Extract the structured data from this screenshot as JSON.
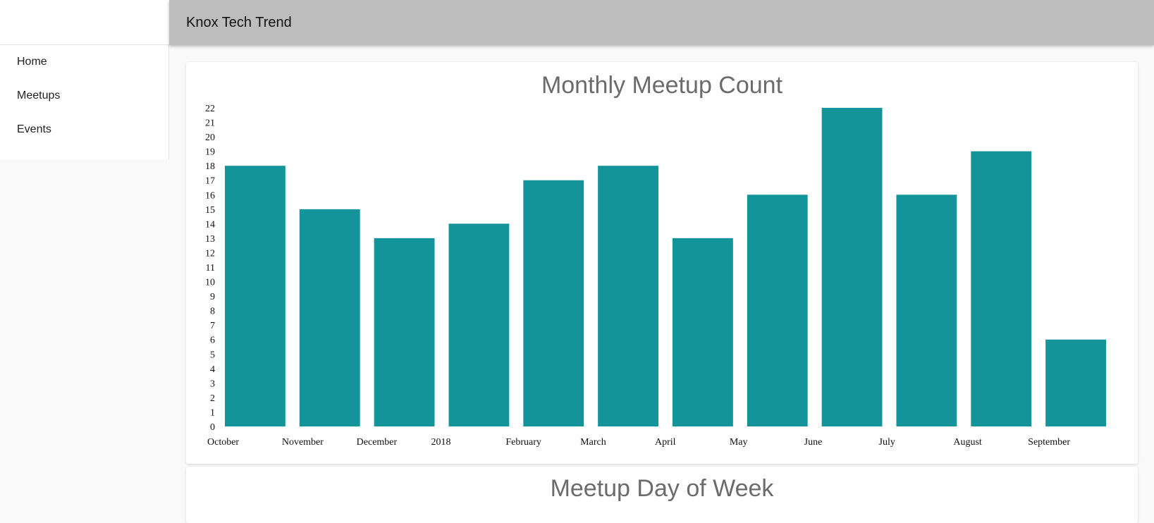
{
  "header": {
    "title": "Knox Tech Trend"
  },
  "sidebar": {
    "items": [
      {
        "label": "Home"
      },
      {
        "label": "Meetups"
      },
      {
        "label": "Events"
      }
    ]
  },
  "cards": {
    "monthly_title": "Monthly Meetup Count",
    "dow_title": "Meetup Day of Week"
  },
  "colors": {
    "bar": "#13949b",
    "topbar": "#bdbdbd"
  },
  "chart_data": {
    "type": "bar",
    "title": "Monthly Meetup Count",
    "categories": [
      "October",
      "November",
      "December",
      "2018",
      "February",
      "March",
      "April",
      "May",
      "June",
      "July",
      "August",
      "September"
    ],
    "values": [
      18,
      15,
      13,
      14,
      17,
      18,
      13,
      16,
      22,
      16,
      19,
      6
    ],
    "ylim": [
      0,
      22
    ],
    "yticks": [
      0,
      1,
      2,
      3,
      4,
      5,
      6,
      7,
      8,
      9,
      10,
      11,
      12,
      13,
      14,
      15,
      16,
      17,
      18,
      19,
      20,
      21,
      22
    ],
    "xlabel": "",
    "ylabel": "",
    "grid": false,
    "legend": "none"
  }
}
